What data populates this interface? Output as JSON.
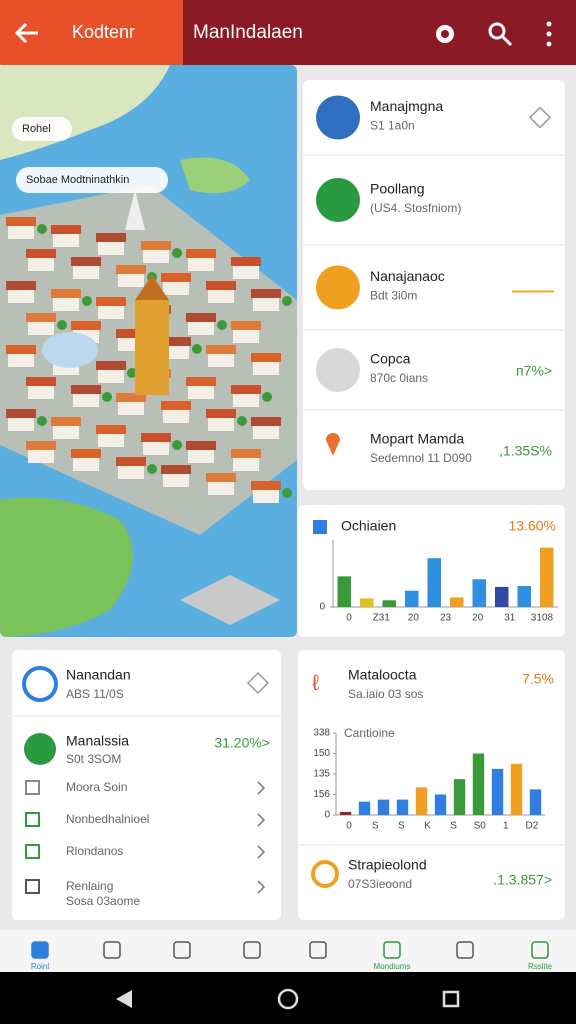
{
  "app_bar": {
    "back_title": "Kodtenr",
    "title": "ManIndalaen"
  },
  "map": {
    "labels": [
      "Rohel",
      "Sobae Modtninathkin"
    ]
  },
  "list": [
    {
      "title": "Manajmgna",
      "subtitle": "S1 1a0n"
    },
    {
      "title": "Poollang",
      "subtitle": "(US4. Stosfniom)"
    },
    {
      "title": "Nanajanaoc",
      "subtitle": "Bdt 3i0m"
    },
    {
      "title": "Copca",
      "subtitle": "870c 0ians",
      "value": "п7%>"
    },
    {
      "title": "Mopart Mamda",
      "subtitle": "Sedemnol 11 D090",
      "value": ",1.35S%"
    }
  ],
  "chart1": {
    "title": "Ochiaien",
    "value": "13.60%",
    "xlabels": [
      "0",
      "Z31",
      "20",
      "23",
      "20",
      "31",
      "3108"
    ],
    "ylim": [
      0,
      70
    ],
    "yticks": [
      0
    ],
    "values": [
      32,
      9,
      7,
      17,
      51,
      10,
      29,
      21,
      22,
      62
    ],
    "colors": [
      "#3a9a3a",
      "#e0c020",
      "#3a9a3a",
      "#2f8fe0",
      "#2f8fe0",
      "#f0a020",
      "#2f8fe0",
      "#2f4aa0",
      "#2f8fe0",
      "#f0a020"
    ]
  },
  "card3": {
    "title": "Nanandan",
    "subtitle": "ABS 11/0S",
    "item": {
      "title": "Manalssia",
      "subtitle": "S0t 3SOM",
      "value": "31.20%>"
    },
    "rows": [
      "Moora Soin",
      "Nonbedhalnioel",
      "Rlondanos",
      "Renlaing"
    ],
    "rows_note": "Sosa 03aome"
  },
  "card4": {
    "title": "Mataloocta",
    "subtitle": "Sa.iaio 03 sos",
    "value": "7.5%",
    "chart": {
      "title": "Cantioine",
      "ylim": [
        0,
        80
      ],
      "yticks": [
        0,
        {
          "value": 20,
          "label": "156"
        },
        {
          "value": 40,
          "label": "135"
        },
        {
          "value": 60,
          "label": "150"
        },
        {
          "value": 80,
          "label": "338"
        }
      ],
      "xlabels": [
        "0",
        "S",
        "S",
        "K",
        "S",
        "S0",
        "1",
        "D2"
      ],
      "values": [
        3,
        13,
        15,
        15,
        27,
        20,
        35,
        60,
        45,
        50,
        25
      ],
      "colors": [
        "#8b2a2a",
        "#2f7fe0",
        "#2f7fe0",
        "#2f7fe0",
        "#f0a020",
        "#2f7fe0",
        "#3a9a3a",
        "#3a9a3a",
        "#2f7fe0",
        "#f0a020",
        "#2f7fe0"
      ]
    },
    "footer": {
      "title": "Strapieolond",
      "subtitle": "07S3ieoond",
      "value": ".1.3.857>"
    }
  },
  "nav": [
    "Roinl",
    null,
    null,
    null,
    null,
    "Mondiums",
    null,
    "Rsslite"
  ]
}
